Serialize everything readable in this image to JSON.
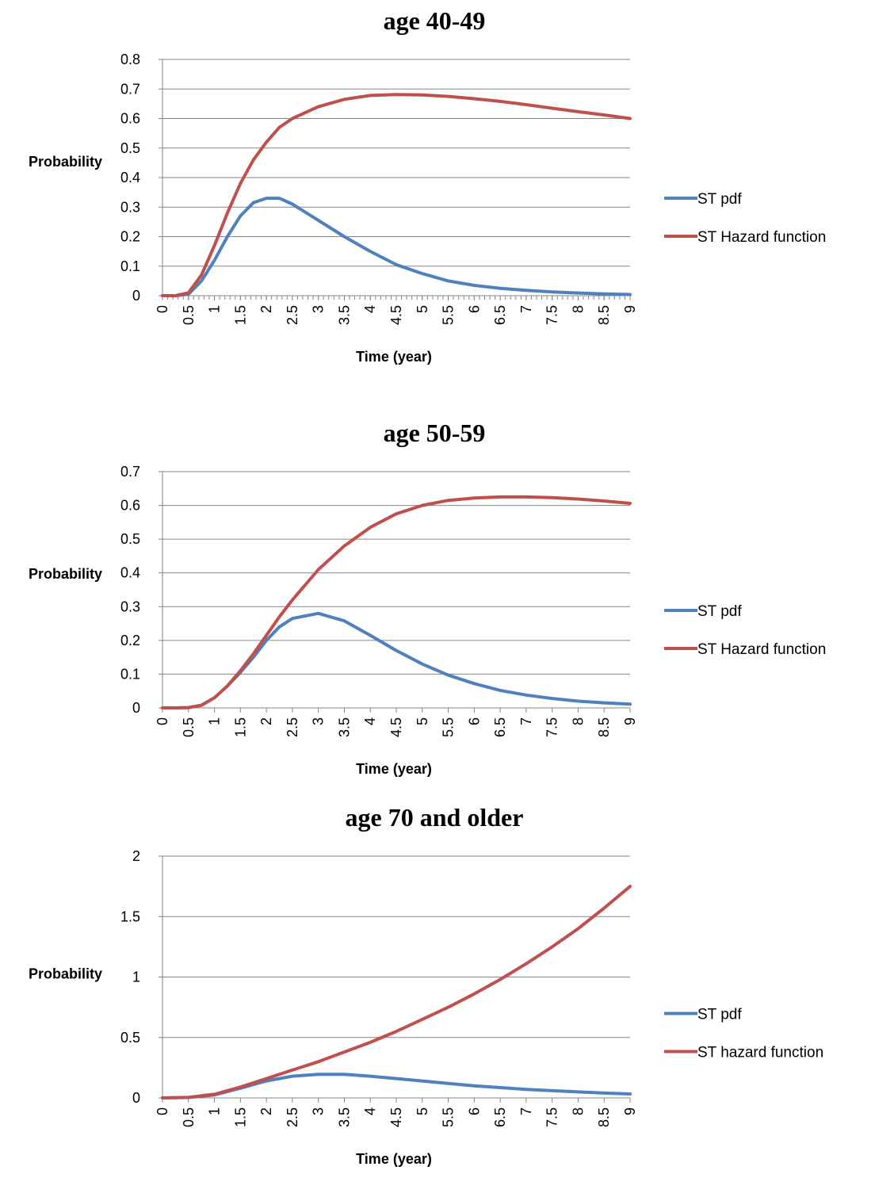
{
  "chart_data": [
    {
      "type": "line",
      "title": "age 40-49",
      "xlabel": "Time (year)",
      "ylabel": "Probability",
      "ylim": [
        0,
        0.8
      ],
      "yticks": [
        "0",
        "0.1",
        "0.2",
        "0.3",
        "0.4",
        "0.5",
        "0.6",
        "0.7",
        "0.8"
      ],
      "xlim": [
        0,
        9
      ],
      "xticks": [
        "0",
        "0.5",
        "1",
        "1.5",
        "2",
        "2.5",
        "3",
        "3.5",
        "4",
        "4.5",
        "5",
        "5.5",
        "6",
        "6.5",
        "7",
        "7.5",
        "8",
        "8.5",
        "9"
      ],
      "grid": true,
      "legend_position": "right",
      "x": [
        0,
        0.25,
        0.5,
        0.75,
        1,
        1.25,
        1.5,
        1.75,
        2,
        2.25,
        2.5,
        3,
        3.5,
        4,
        4.5,
        5,
        5.5,
        6,
        6.5,
        7,
        7.5,
        8,
        8.5,
        9
      ],
      "series": [
        {
          "name": "ST pdf",
          "color": "#4F81BD",
          "values": [
            0,
            0,
            0.005,
            0.05,
            0.12,
            0.2,
            0.27,
            0.315,
            0.33,
            0.33,
            0.31,
            0.255,
            0.2,
            0.15,
            0.105,
            0.075,
            0.05,
            0.035,
            0.025,
            0.018,
            0.013,
            0.009,
            0.006,
            0.004
          ]
        },
        {
          "name": "ST Hazard function",
          "color": "#C0504D",
          "values": [
            0,
            0,
            0.01,
            0.07,
            0.17,
            0.28,
            0.38,
            0.46,
            0.52,
            0.57,
            0.6,
            0.64,
            0.665,
            0.678,
            0.681,
            0.68,
            0.675,
            0.667,
            0.658,
            0.647,
            0.635,
            0.623,
            0.612,
            0.6
          ]
        }
      ]
    },
    {
      "type": "line",
      "title": "age 50-59",
      "xlabel": "Time (year)",
      "ylabel": "Probability",
      "ylim": [
        0,
        0.7
      ],
      "yticks": [
        "0",
        "0.1",
        "0.2",
        "0.3",
        "0.4",
        "0.5",
        "0.6",
        "0.7"
      ],
      "xlim": [
        0,
        9
      ],
      "xticks": [
        "0",
        "0.5",
        "1",
        "1.5",
        "2",
        "2.5",
        "3",
        "3.5",
        "4",
        "4.5",
        "5",
        "5.5",
        "6",
        "6.5",
        "7",
        "7.5",
        "8",
        "8.5",
        "9"
      ],
      "grid": true,
      "legend_position": "right",
      "x": [
        0,
        0.25,
        0.5,
        0.75,
        1,
        1.25,
        1.5,
        1.75,
        2,
        2.25,
        2.5,
        3,
        3.5,
        4,
        4.5,
        5,
        5.5,
        6,
        6.5,
        7,
        7.5,
        8,
        8.5,
        9
      ],
      "series": [
        {
          "name": "ST pdf",
          "color": "#4F81BD",
          "values": [
            0,
            0,
            0.001,
            0.008,
            0.03,
            0.065,
            0.105,
            0.15,
            0.2,
            0.24,
            0.265,
            0.28,
            0.258,
            0.215,
            0.17,
            0.13,
            0.097,
            0.072,
            0.052,
            0.038,
            0.028,
            0.02,
            0.015,
            0.011
          ]
        },
        {
          "name": "ST Hazard function",
          "color": "#C0504D",
          "values": [
            0,
            0,
            0.001,
            0.008,
            0.03,
            0.065,
            0.11,
            0.16,
            0.215,
            0.27,
            0.32,
            0.41,
            0.48,
            0.535,
            0.575,
            0.6,
            0.615,
            0.622,
            0.625,
            0.625,
            0.623,
            0.619,
            0.613,
            0.606
          ]
        }
      ]
    },
    {
      "type": "line",
      "title": "age 70 and older",
      "xlabel": "Time (year)",
      "ylabel": "Probability",
      "ylim": [
        0,
        2
      ],
      "yticks": [
        "0",
        "0.5",
        "1",
        "1.5",
        "2"
      ],
      "xlim": [
        0,
        9
      ],
      "xticks": [
        "0",
        "0.5",
        "1",
        "1.5",
        "2",
        "2.5",
        "3",
        "3.5",
        "4",
        "4.5",
        "5",
        "5.5",
        "6",
        "6.5",
        "7",
        "7.5",
        "8",
        "8.5",
        "9"
      ],
      "grid": true,
      "legend_position": "right",
      "x": [
        0,
        0.5,
        1,
        1.5,
        2,
        2.5,
        3,
        3.5,
        4,
        4.5,
        5,
        5.5,
        6,
        6.5,
        7,
        7.5,
        8,
        8.5,
        9
      ],
      "series": [
        {
          "name": "ST pdf",
          "color": "#4F81BD",
          "values": [
            0,
            0.003,
            0.025,
            0.08,
            0.14,
            0.18,
            0.195,
            0.195,
            0.18,
            0.16,
            0.14,
            0.12,
            0.1,
            0.085,
            0.07,
            0.06,
            0.05,
            0.04,
            0.033
          ]
        },
        {
          "name": "ST hazard function",
          "color": "#C0504D",
          "values": [
            0,
            0.005,
            0.03,
            0.09,
            0.16,
            0.23,
            0.3,
            0.38,
            0.46,
            0.55,
            0.65,
            0.75,
            0.86,
            0.98,
            1.11,
            1.25,
            1.4,
            1.57,
            1.75
          ]
        }
      ]
    }
  ]
}
